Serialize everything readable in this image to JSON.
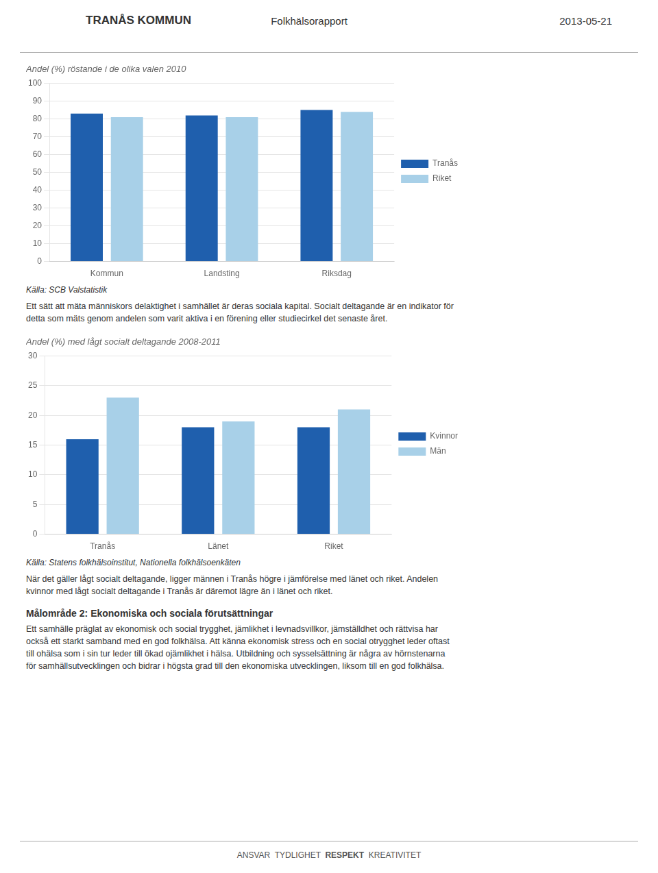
{
  "header": [
    "TRANÅS KOMMUN",
    "Folkhälsorapport",
    "2013-05-21"
  ],
  "chart_data": [
    {
      "type": "bar",
      "title": "Andel (%) röstande i de olika valen 2010",
      "categories": [
        "Kommun",
        "Landsting",
        "Riksdag"
      ],
      "series": [
        {
          "name": "Tranås",
          "color": "#1F5FAD",
          "values": [
            83,
            82,
            85
          ]
        },
        {
          "name": "Riket",
          "color": "#A8D0E8",
          "values": [
            81,
            81,
            84
          ]
        }
      ],
      "ylim": [
        0,
        100
      ],
      "yticks": [
        0,
        10,
        20,
        30,
        40,
        50,
        60,
        70,
        80,
        90,
        100
      ],
      "grid": true,
      "legend": "right",
      "annotations": [
        "Källa: SCB Valstatistik",
        "Ett sätt att mäta människors delaktighet i samhället är deras sociala kapital. Socialt deltagande är en indikator för\ndetta som mäts genom andelen som varit aktiva i en förening eller studiecirkel det senaste året."
      ]
    },
    {
      "type": "bar",
      "title": "Andel (%) med lågt socialt deltagande 2008-2011",
      "categories": [
        "Tranås",
        "Länet",
        "Riket"
      ],
      "series": [
        {
          "name": "Kvinnor",
          "color": "#1F5FAD",
          "values": [
            16,
            18,
            18
          ]
        },
        {
          "name": "Män",
          "color": "#A8D0E8",
          "values": [
            23,
            19,
            21
          ]
        }
      ],
      "ylim": [
        0,
        30
      ],
      "yticks": [
        0,
        5,
        10,
        15,
        20,
        25,
        30
      ],
      "grid": true,
      "legend": "right",
      "annotations": [
        "Källa: Statens folkhälsoinstitut, Nationella folkhälsoenkäten",
        "När det gäller lågt socialt deltagande, ligger männen i Tranås högre i jämförelse med länet och riket. Andelen\nkvinnor med lågt socialt deltagande i Tranås är däremot lägre än i länet och riket."
      ]
    }
  ],
  "sections": [
    {
      "title": "Målområde 2: Ekonomiska och sociala förutsättningar",
      "text": "Ett samhälle präglat av ekonomisk och social trygghet, jämlikhet i levnadsvillkor, jämställdhet och rättvisa har\nockså ett starkt samband med en god folkhälsa. Att känna ekonomisk stress och en social otrygghet leder oftast\ntill ohälsa som i sin tur leder till ökad ojämlikhet i hälsa. Utbildning och sysselsättning är några av hörnstenarna\nför samhällsutvecklingen och bidrar i högsta grad till den ekonomiska utvecklingen, liksom till en god folkhälsa."
    }
  ],
  "footer": [
    "ANSVAR  TYDLIGHET  ",
    "RESPEKT",
    "  KREATIVITET"
  ]
}
